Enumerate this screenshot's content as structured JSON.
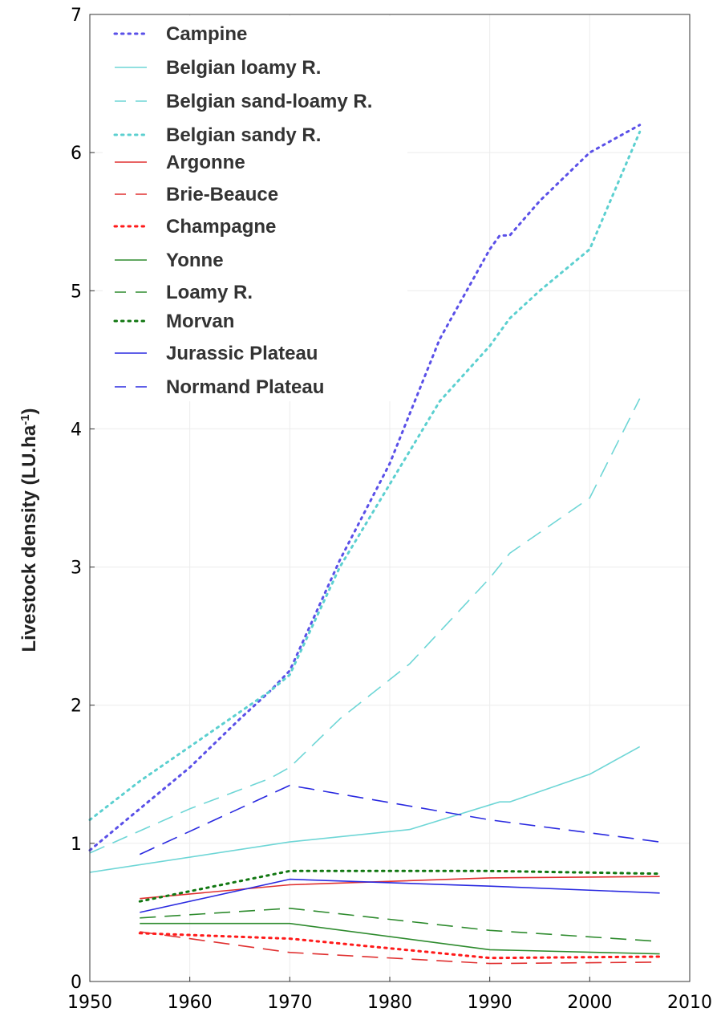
{
  "chart_data": {
    "type": "line",
    "title": "",
    "xlabel": "",
    "ylabel_main": "Livestock density (LU.ha",
    "ylabel_sup": "-1",
    "ylabel_close": ")",
    "xlim": [
      1950,
      2010
    ],
    "ylim": [
      0,
      7
    ],
    "xticks": [
      1950,
      1960,
      1970,
      1980,
      1990,
      2000,
      2010
    ],
    "yticks": [
      0,
      1,
      2,
      3,
      4,
      5,
      6,
      7
    ],
    "grid": true,
    "legend_position": "top-left",
    "series": [
      {
        "name": "Campine",
        "color": "#5a50e8",
        "style": "dotted",
        "x": [
          1950,
          1955,
          1960,
          1965,
          1968,
          1970,
          1975,
          1980,
          1985,
          1990,
          1991,
          1992,
          1995,
          2000,
          2005
        ],
        "y": [
          0.95,
          1.25,
          1.55,
          1.9,
          2.1,
          2.25,
          3.05,
          3.75,
          4.65,
          5.3,
          5.4,
          5.4,
          5.65,
          6.0,
          6.2
        ]
      },
      {
        "name": "Belgian loamy R.",
        "color": "#6ed6d6",
        "style": "solid",
        "x": [
          1950,
          1970,
          1982,
          1991,
          1992,
          2000,
          2005
        ],
        "y": [
          0.79,
          1.01,
          1.1,
          1.3,
          1.3,
          1.5,
          1.7
        ]
      },
      {
        "name": "Belgian sand-loamy R.",
        "color": "#6ed6d6",
        "style": "dashed",
        "x": [
          1950,
          1960,
          1968,
          1970,
          1975,
          1982,
          1990,
          1992,
          2000,
          2005
        ],
        "y": [
          0.93,
          1.25,
          1.47,
          1.55,
          1.9,
          2.3,
          2.92,
          3.1,
          3.5,
          4.22
        ]
      },
      {
        "name": "Belgian sandy R.",
        "color": "#5cd0d0",
        "style": "dotted",
        "x": [
          1950,
          1955,
          1960,
          1965,
          1968,
          1970,
          1975,
          1980,
          1985,
          1990,
          1991,
          1992,
          1995,
          2000,
          2005
        ],
        "y": [
          1.17,
          1.45,
          1.7,
          1.95,
          2.1,
          2.22,
          3.0,
          3.6,
          4.2,
          4.6,
          4.7,
          4.8,
          5.0,
          5.3,
          6.15
        ]
      },
      {
        "name": "Argonne",
        "color": "#e03030",
        "style": "solid",
        "x": [
          1955,
          1970,
          1990,
          2007
        ],
        "y": [
          0.6,
          0.7,
          0.75,
          0.76
        ]
      },
      {
        "name": "Brie-Beauce",
        "color": "#e03030",
        "style": "dashed",
        "x": [
          1955,
          1970,
          1990,
          2007
        ],
        "y": [
          0.36,
          0.21,
          0.13,
          0.14
        ]
      },
      {
        "name": "Champagne",
        "color": "#ff1a1a",
        "style": "dotted",
        "x": [
          1955,
          1970,
          1990,
          2007
        ],
        "y": [
          0.35,
          0.31,
          0.17,
          0.18
        ]
      },
      {
        "name": "Yonne",
        "color": "#2e8b2e",
        "style": "solid",
        "x": [
          1955,
          1970,
          1990,
          2007
        ],
        "y": [
          0.42,
          0.42,
          0.23,
          0.2
        ]
      },
      {
        "name": "Loamy R.",
        "color": "#2e8b2e",
        "style": "dashed",
        "x": [
          1955,
          1970,
          1990,
          2007
        ],
        "y": [
          0.46,
          0.53,
          0.37,
          0.29
        ]
      },
      {
        "name": "Morvan",
        "color": "#117711",
        "style": "dotted",
        "x": [
          1955,
          1970,
          1990,
          2007
        ],
        "y": [
          0.58,
          0.8,
          0.8,
          0.78
        ]
      },
      {
        "name": "Jurassic Plateau",
        "color": "#2a2ae0",
        "style": "solid",
        "x": [
          1955,
          1970,
          1990,
          2007
        ],
        "y": [
          0.5,
          0.74,
          0.69,
          0.64
        ]
      },
      {
        "name": "Normand Plateau",
        "color": "#2a2ae0",
        "style": "dashed",
        "x": [
          1955,
          1970,
          1990,
          2007
        ],
        "y": [
          0.92,
          1.42,
          1.17,
          1.01
        ]
      }
    ]
  }
}
